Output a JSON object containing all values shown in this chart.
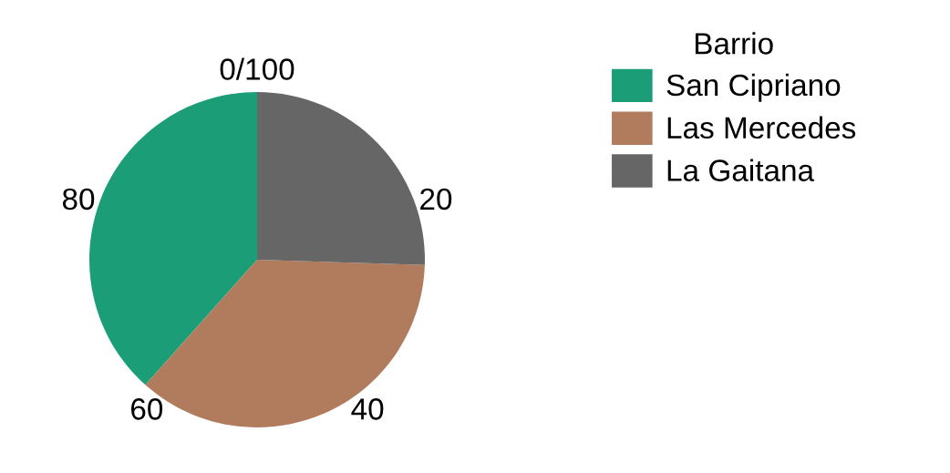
{
  "chart_data": {
    "type": "pie",
    "legend_title": "Barrio",
    "legend": "right",
    "categories": [
      "San Cipriano",
      "Las Mercedes",
      "La Gaitana"
    ],
    "values": [
      38.4,
      36.1,
      25.5
    ],
    "colors": [
      "#1b9e77",
      "#b07c5d",
      "#666666"
    ],
    "annotations": [
      "0/100",
      "20",
      "40",
      "60",
      "80"
    ]
  }
}
